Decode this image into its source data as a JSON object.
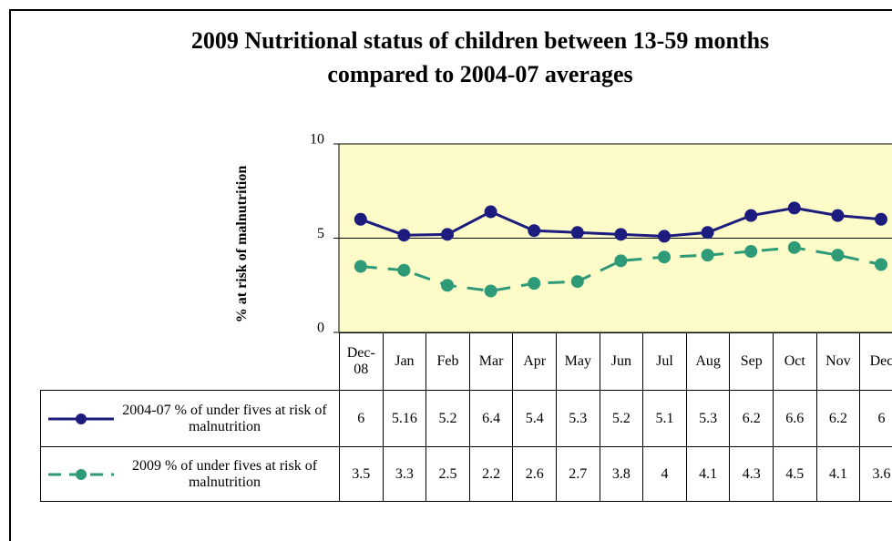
{
  "chart_data": {
    "type": "line",
    "title": "2009 Nutritional status of  children between 13-59 months compared to 2004-07 averages",
    "y_label": "% at risk of malnutrition",
    "categories": [
      "Dec-08",
      "Jan",
      "Feb",
      "Mar",
      "Apr",
      "May",
      "Jun",
      "Jul",
      "Aug",
      "Sep",
      "Oct",
      "Nov",
      "Dec"
    ],
    "series": [
      {
        "name": "2004-07 % of under fives at risk of malnutrition",
        "color": "#1c1c7e",
        "line_style": "solid",
        "values": [
          6,
          5.16,
          5.2,
          6.4,
          5.4,
          5.3,
          5.2,
          5.1,
          5.3,
          6.2,
          6.6,
          6.2,
          6
        ]
      },
      {
        "name": "2009 % of under fives at risk of malnutrition",
        "color": "#2e9a78",
        "line_style": "dashed",
        "values": [
          3.5,
          3.3,
          2.5,
          2.2,
          2.6,
          2.7,
          3.8,
          4,
          4.1,
          4.3,
          4.5,
          4.1,
          3.6
        ]
      }
    ],
    "ylim": [
      0,
      10
    ],
    "yticks": [
      0,
      5,
      10
    ],
    "grid": true,
    "plot_background": "#fdfcc9"
  }
}
